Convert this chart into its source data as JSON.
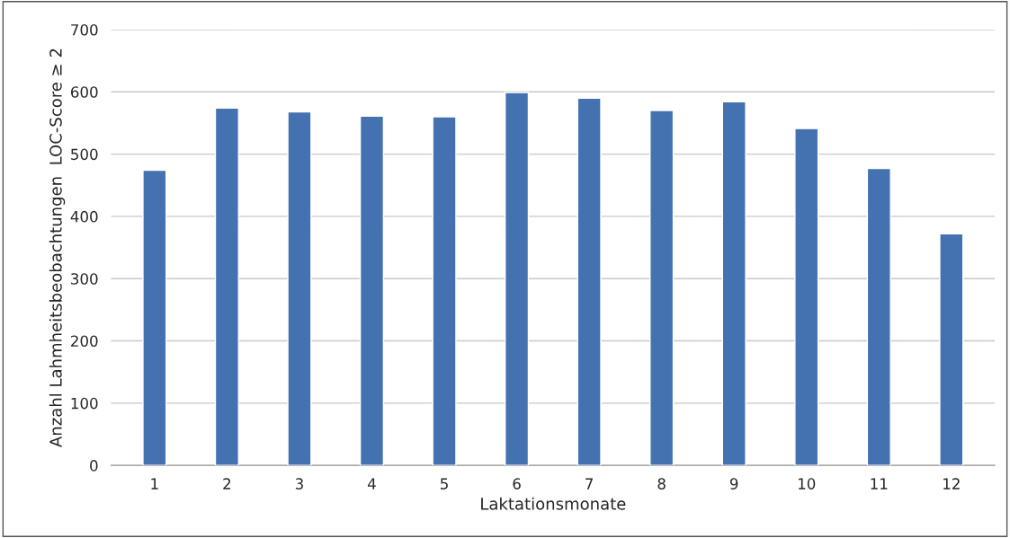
{
  "chart_data": {
    "type": "bar",
    "xlabel": "Laktationsmonate",
    "ylabel": "Anzahl Lahmheitsbeobachtungen  LOC-Score ≥ 2",
    "categories": [
      "1",
      "2",
      "3",
      "4",
      "5",
      "6",
      "7",
      "8",
      "9",
      "10",
      "11",
      "12"
    ],
    "values": [
      474,
      574,
      568,
      561,
      560,
      599,
      590,
      570,
      584,
      541,
      477,
      372
    ],
    "color": "#4472b0",
    "ylim": [
      0,
      700
    ],
    "yticks": [
      0,
      100,
      200,
      300,
      400,
      500,
      600,
      700
    ],
    "grid": "y"
  }
}
